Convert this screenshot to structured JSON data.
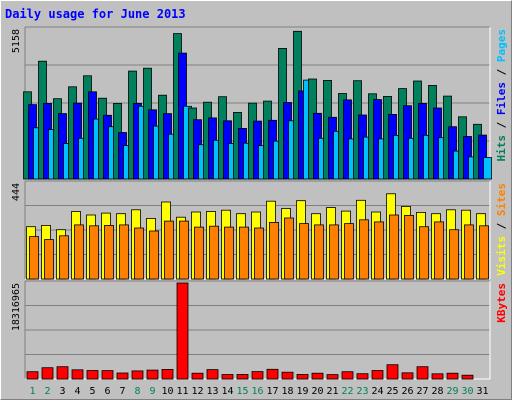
{
  "chart_data": {
    "type": "bar",
    "title": "Daily usage for June 2013",
    "categories": [
      "1",
      "2",
      "3",
      "4",
      "5",
      "6",
      "7",
      "8",
      "9",
      "10",
      "11",
      "12",
      "13",
      "14",
      "15",
      "16",
      "17",
      "18",
      "19",
      "20",
      "21",
      "22",
      "23",
      "24",
      "25",
      "26",
      "27",
      "28",
      "29",
      "30",
      "31"
    ],
    "weekend_days": [
      "1",
      "2",
      "8",
      "9",
      "15",
      "16",
      "22",
      "23",
      "29",
      "30"
    ],
    "panels": [
      {
        "name": "hits-files-pages",
        "max_label": "5158",
        "ymax": 5158,
        "right_labels": [
          {
            "text": "Hits",
            "color": "#00805c"
          },
          {
            "text": "Files",
            "color": "#0000ff"
          },
          {
            "text": "Pages",
            "color": "#00c0ff"
          }
        ],
        "series": [
          {
            "name": "Hits",
            "color": "#00805c",
            "values": [
              3000,
              4050,
              2760,
              3170,
              3550,
              2780,
              2600,
              3710,
              3810,
              2880,
              5000,
              2440,
              2640,
              2830,
              2290,
              2610,
              2680,
              4490,
              5080,
              3440,
              3390,
              2940,
              3380,
              2930,
              2840,
              3110,
              3370,
              3220,
              2850,
              2140,
              1880
            ]
          },
          {
            "name": "Files",
            "color": "#0000ff",
            "values": [
              2560,
              2600,
              2250,
              2610,
              3000,
              2190,
              1600,
              2600,
              2380,
              2250,
              4330,
              2040,
              2100,
              2000,
              1740,
              1990,
              2020,
              2630,
              3030,
              2260,
              2120,
              2720,
              2200,
              2730,
              2220,
              2520,
              2600,
              2440,
              1800,
              1460,
              1510
            ]
          },
          {
            "name": "Pages",
            "color": "#00c0ff",
            "values": [
              1760,
              1700,
              1220,
              1400,
              2060,
              1800,
              1150,
              2500,
              1820,
              1540,
              2500,
              1180,
              1330,
              1220,
              1230,
              1150,
              1300,
              2000,
              3400,
              1400,
              1640,
              1380,
              1440,
              1380,
              1500,
              1400,
              1500,
              1420,
              960,
              760,
              740
            ]
          }
        ]
      },
      {
        "name": "visits-sites",
        "max_label": "444",
        "ymax": 444,
        "right_labels": [
          {
            "text": "Visits",
            "color": "#ffff00"
          },
          {
            "text": "Sites",
            "color": "#ff8000"
          }
        ],
        "series": [
          {
            "name": "Visits",
            "color": "#ffff00",
            "values": [
              242,
              248,
              228,
              312,
              296,
              305,
              302,
              320,
              280,
              356,
              286,
              310,
              312,
              318,
              302,
              310,
              360,
              326,
              362,
              302,
              330,
              314,
              364,
              310,
              394,
              336,
              308,
              302,
              320,
              318,
              302
            ]
          },
          {
            "name": "Sites",
            "color": "#ff8000",
            "values": [
              196,
              182,
              200,
              250,
              246,
              248,
              250,
              236,
              222,
              268,
              268,
              240,
              244,
              240,
              240,
              236,
              262,
              282,
              256,
              250,
              250,
              256,
              274,
              264,
              296,
              294,
              242,
              264,
              228,
              250,
              246
            ]
          }
        ]
      },
      {
        "name": "kbytes",
        "max_label": "18316965",
        "ymax": 18316965,
        "right_labels": [
          {
            "text": "KBytes",
            "color": "#ff0000"
          }
        ],
        "series": [
          {
            "name": "KBytes",
            "color": "#ff0000",
            "values": [
              1400000,
              2160000,
              2340000,
              1760000,
              1620000,
              1600000,
              1150000,
              1540000,
              1700000,
              1830000,
              18316965,
              1100000,
              1790000,
              860000,
              880000,
              1420000,
              1850000,
              1300000,
              880000,
              1110000,
              830000,
              1400000,
              1020000,
              1630000,
              2720000,
              1180000,
              2350000,
              1000000,
              1100000,
              720000,
              0
            ]
          }
        ]
      }
    ]
  },
  "colors": {
    "background": "#c0c0c0",
    "plot_background": "#c0c0c0",
    "grid": "#808080",
    "title": "#0000ff",
    "axis_text": "#000000",
    "weekend_label": "#00805c"
  }
}
